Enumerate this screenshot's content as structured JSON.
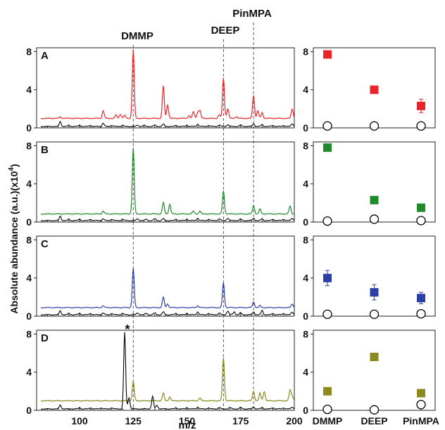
{
  "figure": {
    "ylabel": "Absolute abundance (a.u.)(x10",
    "ylabel_sup": "4",
    "ylabel_close": ")",
    "xlabel": "m/z",
    "compound_labels": [
      "DMMP",
      "DEEP",
      "PinMPA"
    ],
    "marker_note": "*"
  },
  "chart_data": [
    {
      "type": "line",
      "panel": "A",
      "title": "",
      "xlabel": "m/z",
      "ylabel": "Absolute abundance (a.u.)(x10^4)",
      "xlim": [
        80,
        200
      ],
      "ylim": [
        0,
        8.4
      ],
      "yticks": [
        0,
        4,
        8
      ],
      "xticks": [
        100,
        125,
        150,
        175,
        200
      ],
      "series": [
        {
          "color": "#e8262a",
          "baseline": 1.0,
          "peaks": [
            [
              91,
              0.15
            ],
            [
              111,
              0.8
            ],
            [
              117,
              0.35
            ],
            [
              119,
              0.45
            ],
            [
              121,
              0.3
            ],
            [
              125,
              7.2
            ],
            [
              139,
              3.4
            ],
            [
              141,
              1.4
            ],
            [
              151,
              0.3
            ],
            [
              153,
              0.7
            ],
            [
              155,
              0.6
            ],
            [
              156,
              0.8
            ],
            [
              165,
              0.4
            ],
            [
              167,
              4.2
            ],
            [
              169,
              1.0
            ],
            [
              173,
              0.2
            ],
            [
              181,
              2.4
            ],
            [
              183,
              0.8
            ],
            [
              185,
              0.6
            ],
            [
              199,
              1.0
            ]
          ]
        },
        {
          "color": "#000000",
          "baseline": 0.15,
          "peaks": [
            [
              91,
              0.5
            ],
            [
              95,
              0.12
            ],
            [
              100,
              0.12
            ],
            [
              105,
              0.12
            ],
            [
              111,
              0.35
            ],
            [
              115,
              0.12
            ],
            [
              120,
              0.12
            ],
            [
              127,
              0.15
            ],
            [
              130,
              0.12
            ],
            [
              135,
              0.15
            ],
            [
              139,
              0.25
            ],
            [
              145,
              0.12
            ],
            [
              150,
              0.12
            ],
            [
              155,
              0.25
            ],
            [
              160,
              0.12
            ],
            [
              165,
              0.15
            ],
            [
              169,
              0.2
            ],
            [
              175,
              0.15
            ],
            [
              181,
              0.3
            ],
            [
              185,
              0.2
            ],
            [
              190,
              0.12
            ],
            [
              195,
              0.12
            ],
            [
              199,
              0.3
            ]
          ]
        }
      ]
    },
    {
      "type": "line",
      "panel": "B",
      "title": "",
      "xlabel": "m/z",
      "ylabel": "",
      "xlim": [
        80,
        200
      ],
      "ylim": [
        0,
        8.4
      ],
      "yticks": [
        0,
        4,
        8
      ],
      "xticks": [
        100,
        125,
        150,
        175,
        200
      ],
      "series": [
        {
          "color": "#1f8a2c",
          "baseline": 0.85,
          "peaks": [
            [
              111,
              0.3
            ],
            [
              125,
              6.9
            ],
            [
              139,
              1.2
            ],
            [
              142,
              1.0
            ],
            [
              153,
              0.3
            ],
            [
              156,
              0.3
            ],
            [
              167,
              2.4
            ],
            [
              181,
              0.9
            ],
            [
              184,
              0.5
            ],
            [
              198,
              0.8
            ]
          ]
        },
        {
          "color": "#000000",
          "baseline": 0.15,
          "peaks": [
            [
              91,
              0.45
            ],
            [
              95,
              0.15
            ],
            [
              100,
              0.15
            ],
            [
              105,
              0.15
            ],
            [
              111,
              0.2
            ],
            [
              115,
              0.15
            ],
            [
              120,
              0.15
            ],
            [
              127,
              0.2
            ],
            [
              131,
              0.15
            ],
            [
              135,
              0.2
            ],
            [
              139,
              0.2
            ],
            [
              145,
              0.15
            ],
            [
              150,
              0.15
            ],
            [
              155,
              0.25
            ],
            [
              160,
              0.15
            ],
            [
              165,
              0.2
            ],
            [
              169,
              0.25
            ],
            [
              175,
              0.15
            ],
            [
              181,
              0.25
            ],
            [
              185,
              0.2
            ],
            [
              190,
              0.15
            ],
            [
              195,
              0.15
            ],
            [
              199,
              0.25
            ]
          ]
        }
      ]
    },
    {
      "type": "line",
      "panel": "C",
      "title": "",
      "xlabel": "m/z",
      "ylabel": "",
      "xlim": [
        80,
        200
      ],
      "ylim": [
        0,
        8.4
      ],
      "yticks": [
        0,
        4,
        8
      ],
      "xticks": [
        100,
        125,
        150,
        175,
        200
      ],
      "series": [
        {
          "color": "#2b3fa6",
          "baseline": 0.9,
          "peaks": [
            [
              111,
              0.2
            ],
            [
              125,
              4.1
            ],
            [
              139,
              1.1
            ],
            [
              141,
              0.4
            ],
            [
              155,
              0.2
            ],
            [
              167,
              2.6
            ],
            [
              181,
              0.6
            ],
            [
              184,
              0.2
            ],
            [
              199,
              0.4
            ]
          ]
        },
        {
          "color": "#000000",
          "baseline": 0.15,
          "peaks": [
            [
              91,
              0.4
            ],
            [
              95,
              0.15
            ],
            [
              100,
              0.15
            ],
            [
              105,
              0.15
            ],
            [
              111,
              0.2
            ],
            [
              115,
              0.15
            ],
            [
              120,
              0.15
            ],
            [
              127,
              0.2
            ],
            [
              131,
              0.15
            ],
            [
              135,
              0.2
            ],
            [
              139,
              0.3
            ],
            [
              145,
              0.15
            ],
            [
              150,
              0.15
            ],
            [
              155,
              0.3
            ],
            [
              160,
              0.15
            ],
            [
              165,
              0.2
            ],
            [
              169,
              0.4
            ],
            [
              172,
              0.3
            ],
            [
              175,
              0.2
            ],
            [
              181,
              0.3
            ],
            [
              185,
              0.45
            ],
            [
              190,
              0.15
            ],
            [
              195,
              0.15
            ],
            [
              199,
              0.3
            ]
          ]
        }
      ]
    },
    {
      "type": "line",
      "panel": "D",
      "title": "",
      "xlabel": "m/z",
      "ylabel": "",
      "xlim": [
        80,
        200
      ],
      "ylim": [
        0,
        8.4
      ],
      "yticks": [
        0,
        4,
        8
      ],
      "xticks": [
        100,
        125,
        150,
        175,
        200
      ],
      "series": [
        {
          "color": "#8a8a1e",
          "baseline": 1.0,
          "peaks": [
            [
              125,
              2.0
            ],
            [
              139,
              0.8
            ],
            [
              142,
              0.4
            ],
            [
              156,
              0.3
            ],
            [
              167,
              4.5
            ],
            [
              181,
              1.0
            ],
            [
              184,
              0.8
            ],
            [
              186,
              1.0
            ],
            [
              198,
              1.1
            ],
            [
              199,
              0.5
            ]
          ]
        },
        {
          "color": "#000000",
          "baseline": 0.15,
          "peaks": [
            [
              91,
              0.4
            ],
            [
              100,
              0.12
            ],
            [
              105,
              0.12
            ],
            [
              110,
              0.12
            ],
            [
              115,
              0.12
            ],
            [
              121,
              8.0
            ],
            [
              123,
              1.2
            ],
            [
              134,
              1.3
            ],
            [
              136,
              0.4
            ],
            [
              145,
              0.12
            ],
            [
              150,
              0.12
            ],
            [
              155,
              0.2
            ],
            [
              160,
              0.12
            ],
            [
              165,
              0.15
            ],
            [
              170,
              0.15
            ],
            [
              175,
              0.15
            ],
            [
              181,
              0.2
            ],
            [
              185,
              0.15
            ],
            [
              190,
              0.12
            ],
            [
              195,
              0.12
            ],
            [
              199,
              0.2
            ]
          ]
        }
      ]
    },
    {
      "type": "scatter",
      "panel": "A",
      "categories": [
        "DMMP",
        "DEEP",
        "PinMPA"
      ],
      "ylim": [
        0,
        8.4
      ],
      "yticks": [
        0,
        4,
        8
      ],
      "series": [
        {
          "marker": "filled-square",
          "color": "#e8262a",
          "values": [
            7.7,
            4.0,
            2.3
          ],
          "errors": [
            0.25,
            0.2,
            0.7
          ]
        },
        {
          "marker": "open-circle",
          "color": "#000000",
          "values": [
            0.2,
            0.2,
            0.2
          ]
        }
      ]
    },
    {
      "type": "scatter",
      "panel": "B",
      "categories": [
        "DMMP",
        "DEEP",
        "PinMPA"
      ],
      "ylim": [
        0,
        8.4
      ],
      "yticks": [
        0,
        4,
        8
      ],
      "series": [
        {
          "marker": "filled-square",
          "color": "#1f8a2c",
          "values": [
            7.8,
            2.3,
            1.5
          ],
          "errors": [
            0.15,
            0.15,
            0.15
          ]
        },
        {
          "marker": "open-circle",
          "color": "#000000",
          "values": [
            0.1,
            0.3,
            0.15
          ]
        }
      ]
    },
    {
      "type": "scatter",
      "panel": "C",
      "categories": [
        "DMMP",
        "DEEP",
        "PinMPA"
      ],
      "ylim": [
        0,
        8.4
      ],
      "yticks": [
        0,
        4,
        8
      ],
      "series": [
        {
          "marker": "filled-square",
          "color": "#2b3fa6",
          "values": [
            4.0,
            2.5,
            1.9
          ],
          "errors": [
            0.8,
            0.8,
            0.6
          ]
        },
        {
          "marker": "open-circle",
          "color": "#000000",
          "values": [
            0.2,
            0.2,
            0.25
          ]
        }
      ]
    },
    {
      "type": "scatter",
      "panel": "D",
      "categories": [
        "DMMP",
        "DEEP",
        "PinMPA"
      ],
      "ylim": [
        0,
        8.4
      ],
      "yticks": [
        0,
        4,
        8
      ],
      "series": [
        {
          "marker": "filled-square",
          "color": "#8a8a1e",
          "values": [
            2.0,
            5.6,
            1.8
          ],
          "errors": [
            0.3,
            0.3,
            0.2
          ]
        },
        {
          "marker": "open-circle",
          "color": "#000000",
          "values": [
            0.1,
            0.05,
            0.6
          ]
        }
      ]
    }
  ]
}
